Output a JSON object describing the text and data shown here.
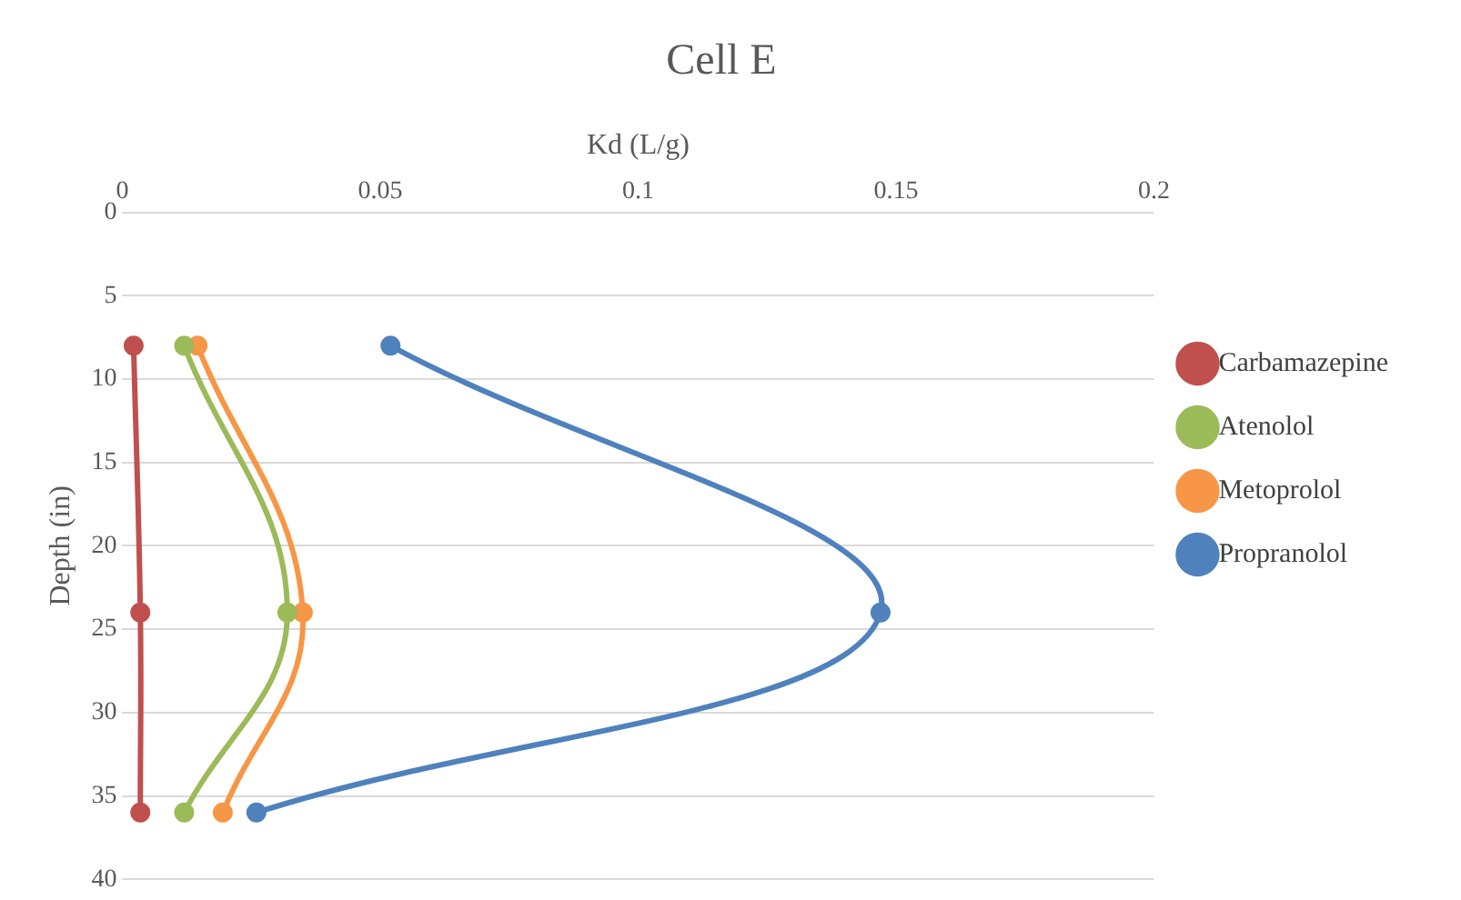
{
  "chart_data": {
    "type": "line",
    "title": "Cell E",
    "xlabel": "Kd (L/g)",
    "ylabel": "Depth (in)",
    "xlim": [
      0,
      0.2
    ],
    "xticks": [
      0,
      0.05,
      0.1,
      0.15,
      0.2
    ],
    "ylim": [
      40,
      0
    ],
    "yticks": [
      0,
      5,
      10,
      15,
      20,
      25,
      30,
      35,
      40
    ],
    "grid": "y",
    "legend": "right",
    "marker": "circle",
    "line_style": "solid",
    "series": [
      {
        "name": "Carbamazepine",
        "color": "#c0504d",
        "x": [
          0.0022,
          0.0035,
          0.0035
        ],
        "values": [
          8,
          24,
          36
        ]
      },
      {
        "name": "Atenolol",
        "color": "#9bbb59",
        "x": [
          0.012,
          0.032,
          0.012
        ],
        "values": [
          8,
          24,
          36
        ]
      },
      {
        "name": "Metoprolol",
        "color": "#f79646",
        "x": [
          0.0146,
          0.035,
          0.0195
        ],
        "values": [
          8,
          24,
          36
        ]
      },
      {
        "name": "Propranolol",
        "color": "#4f81bd",
        "x": [
          0.052,
          0.147,
          0.026
        ],
        "values": [
          8,
          24,
          36
        ]
      }
    ]
  }
}
